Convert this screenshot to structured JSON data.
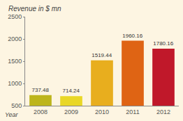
{
  "chart_data": {
    "type": "bar",
    "y_label": "Revenue in $ mn",
    "x_label": "Year",
    "categories": [
      "2008",
      "2009",
      "2010",
      "2011",
      "2012"
    ],
    "values": [
      737.48,
      714.24,
      1519.44,
      1960.16,
      1780.16
    ],
    "colors": [
      "#bdb51c",
      "#e9d726",
      "#e8ae1e",
      "#df6414",
      "#c0182a"
    ],
    "ylim": [
      500,
      2500
    ],
    "yticks": [
      500,
      1000,
      1500,
      2000,
      2500
    ],
    "grid": false,
    "data_labels": true
  }
}
